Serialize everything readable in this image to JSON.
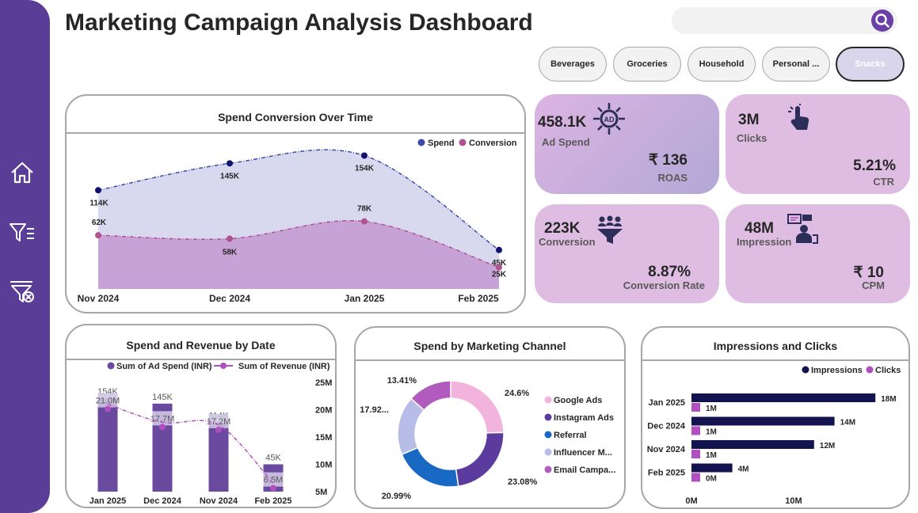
{
  "title": "Marketing Campaign Analysis Dashboard",
  "search": {
    "placeholder": ""
  },
  "slicers": [
    "Beverages",
    "Groceries",
    "Household",
    "Personal ...",
    "Snacks"
  ],
  "kpis": {
    "ad_spend": {
      "value": "458.1K",
      "label": "Ad Spend",
      "value2": "₹ 136",
      "label2": "ROAS"
    },
    "clicks": {
      "value": "3M",
      "label": "Clicks",
      "value2": "5.21%",
      "label2": "CTR"
    },
    "conversion": {
      "value": "223K",
      "label": "Conversion",
      "value2": "8.87%",
      "label2": "Conversion Rate"
    },
    "impression": {
      "value": "48M",
      "label": "Impression",
      "value2": "₹ 10",
      "label2": "CPM"
    }
  },
  "colors": {
    "sidebar": "#5a3d96",
    "spend": "#1f2a7a",
    "conversion": "#b0528f",
    "navy": "#13134f",
    "pink": "#b04fbf"
  },
  "chart_data": [
    {
      "type": "area",
      "title": "Spend Conversion Over Time",
      "categories": [
        "Nov 2024",
        "Dec 2024",
        "Jan 2025",
        "Feb 2025"
      ],
      "series": [
        {
          "name": "Spend",
          "values": [
            114,
            145,
            154,
            45
          ],
          "labels": [
            "114K",
            "145K",
            "154K",
            "45K"
          ]
        },
        {
          "name": "Conversion",
          "values": [
            62,
            58,
            78,
            25
          ],
          "labels": [
            "62K",
            "58K",
            "78K",
            "25K"
          ]
        }
      ],
      "ylim": [
        0,
        170
      ],
      "legend": "top-right"
    },
    {
      "type": "bar",
      "title": "Spend and Revenue by Date",
      "categories": [
        "Jan 2025",
        "Dec 2024",
        "Nov 2024",
        "Feb 2025"
      ],
      "series": [
        {
          "name": "Sum of Ad Spend (INR)",
          "values": [
            154,
            145,
            114,
            45
          ],
          "labels": [
            "154K",
            "145K",
            "114K",
            "45K"
          ]
        },
        {
          "name": "Sum of Revenue (INR)",
          "values": [
            21.0,
            17.7,
            17.2,
            6.5
          ],
          "labels": [
            "21.0M",
            "17.7M",
            "17.2M",
            "6.5M"
          ]
        }
      ],
      "y2_ticks": [
        "25M",
        "20M",
        "15M",
        "10M",
        "5M"
      ],
      "y2lim": [
        5,
        25
      ],
      "ylim": [
        0,
        180
      ],
      "legend": "top"
    },
    {
      "type": "pie",
      "title": "Spend by Marketing Channel",
      "categories": [
        "Google Ads",
        "Instagram Ads",
        "Referral",
        "Influencer M...",
        "Email Campa..."
      ],
      "values": [
        24.6,
        23.08,
        20.99,
        17.92,
        13.41
      ],
      "labels": [
        "24.6%",
        "23.08%",
        "20.99%",
        "17.92...",
        "13.41%"
      ],
      "colors": [
        "#f2b3dd",
        "#5b3c9e",
        "#1769c4",
        "#b7bde6",
        "#b05bbd"
      ],
      "legend": "right"
    },
    {
      "type": "bar",
      "orientation": "horizontal",
      "title": "Impressions and Clicks",
      "categories": [
        "Jan 2025",
        "Dec 2024",
        "Nov 2024",
        "Feb 2025"
      ],
      "series": [
        {
          "name": "Impressions",
          "values": [
            18,
            14,
            12,
            4
          ],
          "labels": [
            "18M",
            "14M",
            "12M",
            "4M"
          ]
        },
        {
          "name": "Clicks",
          "values": [
            1,
            1,
            1,
            0.3
          ],
          "labels": [
            "1M",
            "1M",
            "1M",
            "0M"
          ]
        }
      ],
      "x_ticks": [
        "0M",
        "10M"
      ],
      "xlim": [
        0,
        20
      ],
      "legend": "top-right"
    }
  ]
}
